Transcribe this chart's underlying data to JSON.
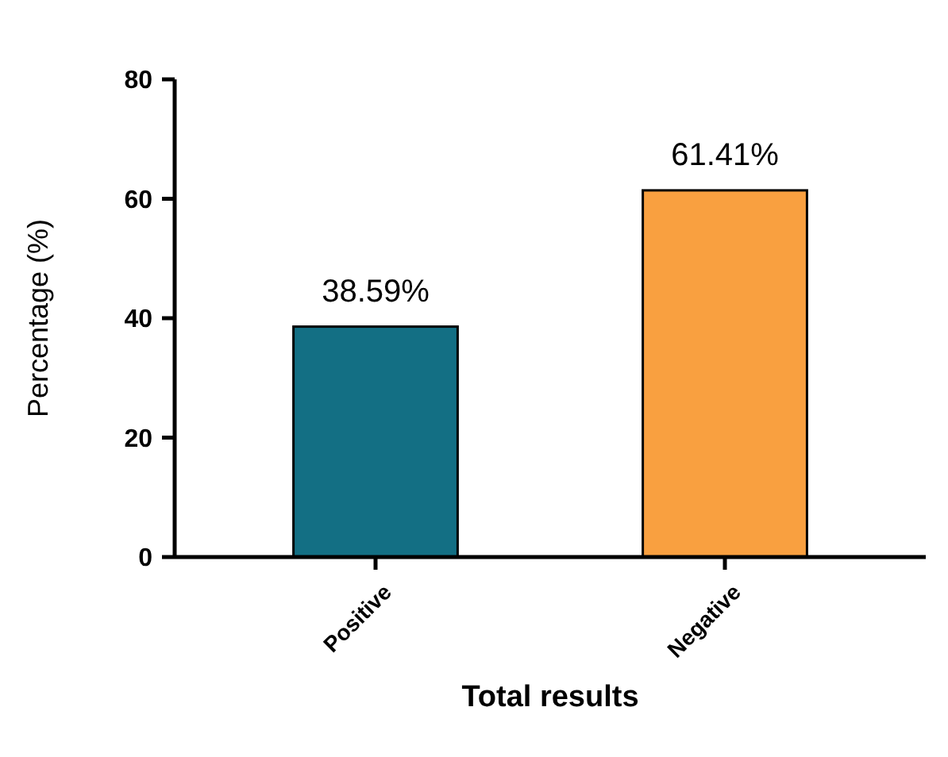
{
  "chart_data": {
    "type": "bar",
    "xlabel": "Total results",
    "ylabel": "Percentage (%)",
    "categories": [
      "Positive",
      "Negative"
    ],
    "values": [
      38.59,
      61.41
    ],
    "colors": [
      "#136f84",
      "#f9a040"
    ],
    "value_labels": [
      "38.59%",
      "61.41%"
    ],
    "ylim": [
      0,
      80
    ],
    "yticks": [
      0,
      20,
      40,
      60,
      80
    ],
    "grid": false
  }
}
